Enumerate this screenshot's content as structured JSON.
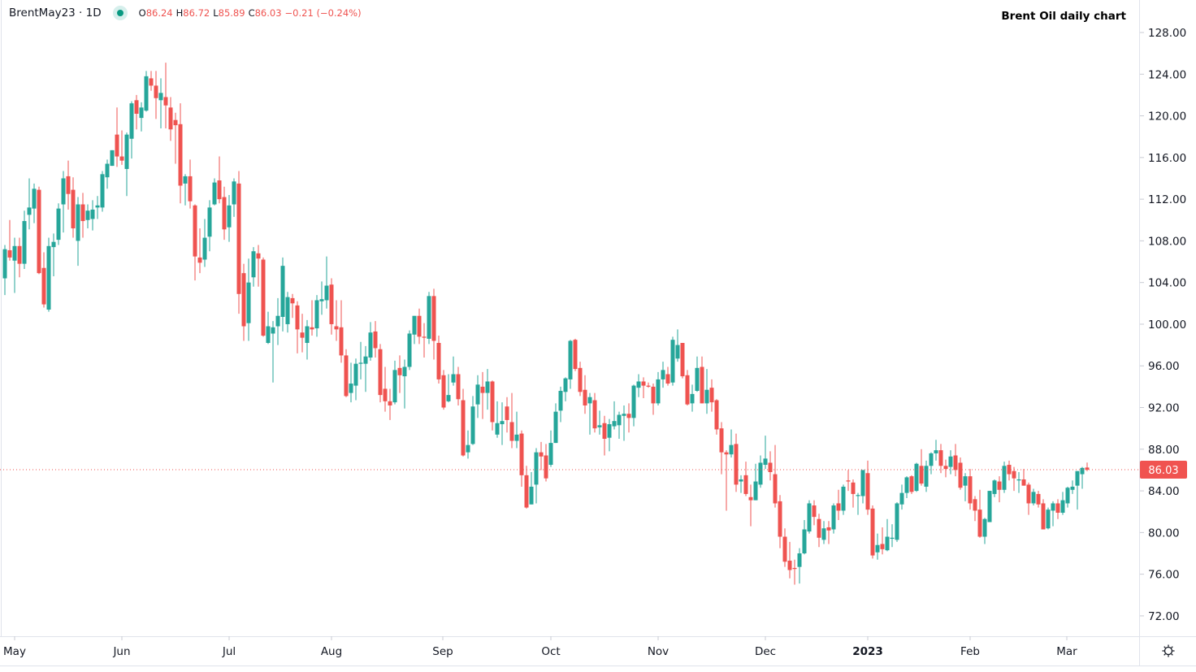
{
  "header": {
    "symbol": "BrentMay23 · 1D",
    "open_label": "O",
    "open": "86.24",
    "high_label": "H",
    "high": "86.72",
    "low_label": "L",
    "low": "85.89",
    "close_label": "C",
    "close": "86.03",
    "change": "−0.21 (−0.24%)"
  },
  "settings_icon": "gear-icon",
  "chart_data": {
    "type": "candlestick",
    "title": "Brent Oil daily chart",
    "ylim": [
      69.8,
      130.6
    ],
    "y_ticks": [
      "128.00",
      "124.00",
      "120.00",
      "116.00",
      "112.00",
      "108.00",
      "104.00",
      "100.00",
      "96.00",
      "92.00",
      "88.00",
      "84.00",
      "80.00",
      "76.00",
      "72.00"
    ],
    "x_ticks": [
      {
        "label": "May",
        "bold": false
      },
      {
        "label": "Jun",
        "bold": false
      },
      {
        "label": "Jul",
        "bold": false
      },
      {
        "label": "Aug",
        "bold": false
      },
      {
        "label": "Sep",
        "bold": false
      },
      {
        "label": "Oct",
        "bold": false
      },
      {
        "label": "Nov",
        "bold": false
      },
      {
        "label": "Dec",
        "bold": false
      },
      {
        "label": "2023",
        "bold": true
      },
      {
        "label": "Feb",
        "bold": false
      },
      {
        "label": "Mar",
        "bold": false
      }
    ],
    "last_price": "86.03",
    "grid": false,
    "colors": {
      "up": "#26a69a",
      "down": "#ef5350",
      "last_price": "#f05350"
    },
    "candle_fields": [
      "open",
      "high",
      "low",
      "close"
    ],
    "candles": [
      [
        104.4,
        107.6,
        102.8,
        107.2
      ],
      [
        107.1,
        110.0,
        106.1,
        106.4
      ],
      [
        106.1,
        108.3,
        103.0,
        107.5
      ],
      [
        107.5,
        108.3,
        104.5,
        105.8
      ],
      [
        105.8,
        110.9,
        105.3,
        109.9
      ],
      [
        110.5,
        114.0,
        109.1,
        111.2
      ],
      [
        111.1,
        113.5,
        109.7,
        113.0
      ],
      [
        112.9,
        113.2,
        104.8,
        104.9
      ],
      [
        105.4,
        106.9,
        101.6,
        101.9
      ],
      [
        101.4,
        108.3,
        101.2,
        107.5
      ],
      [
        107.4,
        108.7,
        104.6,
        107.9
      ],
      [
        108.1,
        111.6,
        107.6,
        111.1
      ],
      [
        111.5,
        114.7,
        108.8,
        114.0
      ],
      [
        114.2,
        115.7,
        111.0,
        112.5
      ],
      [
        112.9,
        114.1,
        108.3,
        109.2
      ],
      [
        108.0,
        112.2,
        105.6,
        111.5
      ],
      [
        111.5,
        112.6,
        108.3,
        109.9
      ],
      [
        110.0,
        111.5,
        109.2,
        110.9
      ],
      [
        110.1,
        111.9,
        109.0,
        111.0
      ],
      [
        111.2,
        112.3,
        110.1,
        111.4
      ],
      [
        111.2,
        114.7,
        110.8,
        114.4
      ],
      [
        114.1,
        115.8,
        113.0,
        115.4
      ],
      [
        115.2,
        116.7,
        115.2,
        116.7
      ],
      [
        118.2,
        120.8,
        115.1,
        116.1
      ],
      [
        116.1,
        118.6,
        115.3,
        115.7
      ],
      [
        114.9,
        118.4,
        112.3,
        118.2
      ],
      [
        117.8,
        121.4,
        115.9,
        121.2
      ],
      [
        121.5,
        122.0,
        118.7,
        120.2
      ],
      [
        119.8,
        121.3,
        118.5,
        120.8
      ],
      [
        120.5,
        124.3,
        120.4,
        123.8
      ],
      [
        123.6,
        124.3,
        122.4,
        122.9
      ],
      [
        122.9,
        124.3,
        119.7,
        121.7
      ],
      [
        121.5,
        123.6,
        118.8,
        122.2
      ],
      [
        121.8,
        125.1,
        118.8,
        121.0
      ],
      [
        120.8,
        121.8,
        117.6,
        118.7
      ],
      [
        119.6,
        120.3,
        115.4,
        119.1
      ],
      [
        119.2,
        121.2,
        111.6,
        113.3
      ],
      [
        113.5,
        114.4,
        111.4,
        114.2
      ],
      [
        114.2,
        115.8,
        111.1,
        111.8
      ],
      [
        111.4,
        111.5,
        104.2,
        106.5
      ],
      [
        106.4,
        109.2,
        104.9,
        105.9
      ],
      [
        106.2,
        110.1,
        105.5,
        108.3
      ],
      [
        108.4,
        111.9,
        107.0,
        111.2
      ],
      [
        111.5,
        114.0,
        111.4,
        113.6
      ],
      [
        113.8,
        116.1,
        111.6,
        112.0
      ],
      [
        112.2,
        113.2,
        108.1,
        109.1
      ],
      [
        109.3,
        112.4,
        107.9,
        111.4
      ],
      [
        111.5,
        114.0,
        110.3,
        113.7
      ],
      [
        113.5,
        114.7,
        101.0,
        102.9
      ],
      [
        104.9,
        105.8,
        98.4,
        99.8
      ],
      [
        100.1,
        106.3,
        98.4,
        104.0
      ],
      [
        104.5,
        107.4,
        103.6,
        107.0
      ],
      [
        106.8,
        107.6,
        103.6,
        106.3
      ],
      [
        106.2,
        106.4,
        98.8,
        98.9
      ],
      [
        98.2,
        101.2,
        98.1,
        99.8
      ],
      [
        99.1,
        100.3,
        94.4,
        99.7
      ],
      [
        99.8,
        102.5,
        98.0,
        100.8
      ],
      [
        100.7,
        106.4,
        99.3,
        105.6
      ],
      [
        100.0,
        103.1,
        99.2,
        102.6
      ],
      [
        102.5,
        102.9,
        100.6,
        102.0
      ],
      [
        101.8,
        102.2,
        97.2,
        99.5
      ],
      [
        99.2,
        101.0,
        97.3,
        98.7
      ],
      [
        98.2,
        100.4,
        96.6,
        99.8
      ],
      [
        99.7,
        102.3,
        98.9,
        99.5
      ],
      [
        99.6,
        102.8,
        98.8,
        102.3
      ],
      [
        102.2,
        104.1,
        100.9,
        102.4
      ],
      [
        102.3,
        106.5,
        101.5,
        103.7
      ],
      [
        103.8,
        104.4,
        99.0,
        100.0
      ],
      [
        99.8,
        102.3,
        98.4,
        99.5
      ],
      [
        99.7,
        102.3,
        96.3,
        97.0
      ],
      [
        97.0,
        97.6,
        93.0,
        93.1
      ],
      [
        93.4,
        96.3,
        92.5,
        94.3
      ],
      [
        94.1,
        96.7,
        92.7,
        96.2
      ],
      [
        96.2,
        98.3,
        94.7,
        96.3
      ],
      [
        96.2,
        97.9,
        93.5,
        96.9
      ],
      [
        96.8,
        100.2,
        96.5,
        99.2
      ],
      [
        99.3,
        100.3,
        96.8,
        97.7
      ],
      [
        97.6,
        98.1,
        92.5,
        93.2
      ],
      [
        93.8,
        95.9,
        91.6,
        92.6
      ],
      [
        92.6,
        93.8,
        90.8,
        92.2
      ],
      [
        92.5,
        96.5,
        92.3,
        95.6
      ],
      [
        95.8,
        97.0,
        93.4,
        95.1
      ],
      [
        95.0,
        96.6,
        91.9,
        95.9
      ],
      [
        95.9,
        99.4,
        95.6,
        99.1
      ],
      [
        99.0,
        100.8,
        98.1,
        100.8
      ],
      [
        100.8,
        101.5,
        98.1,
        98.8
      ],
      [
        98.8,
        100.1,
        96.8,
        98.7
      ],
      [
        98.6,
        103.1,
        98.1,
        102.7
      ],
      [
        102.7,
        103.4,
        96.6,
        98.4
      ],
      [
        98.2,
        98.9,
        94.3,
        94.7
      ],
      [
        95.1,
        95.6,
        91.8,
        92.0
      ],
      [
        92.6,
        95.2,
        92.5,
        93.2
      ],
      [
        94.4,
        96.9,
        94.1,
        95.2
      ],
      [
        95.2,
        95.9,
        92.2,
        92.8
      ],
      [
        92.7,
        93.8,
        87.3,
        87.4
      ],
      [
        87.7,
        89.8,
        87.1,
        88.4
      ],
      [
        88.5,
        93.1,
        88.4,
        92.1
      ],
      [
        92.3,
        95.1,
        91.0,
        94.2
      ],
      [
        94.0,
        95.4,
        90.9,
        93.4
      ],
      [
        93.4,
        95.7,
        91.8,
        94.5
      ],
      [
        94.5,
        94.6,
        89.8,
        90.6
      ],
      [
        89.4,
        92.6,
        89.1,
        90.5
      ],
      [
        90.4,
        92.5,
        88.4,
        90.7
      ],
      [
        92.1,
        93.0,
        89.6,
        90.8
      ],
      [
        90.6,
        93.4,
        88.1,
        88.8
      ],
      [
        88.8,
        91.6,
        88.1,
        89.4
      ],
      [
        89.5,
        89.8,
        84.4,
        85.5
      ],
      [
        85.5,
        86.4,
        82.3,
        82.4
      ],
      [
        82.7,
        85.8,
        82.7,
        84.4
      ],
      [
        84.6,
        88.1,
        82.8,
        87.7
      ],
      [
        87.7,
        88.7,
        86.0,
        87.3
      ],
      [
        87.4,
        88.5,
        84.9,
        85.2
      ],
      [
        86.5,
        89.8,
        86.3,
        88.6
      ],
      [
        88.6,
        92.4,
        88.6,
        91.6
      ],
      [
        91.7,
        94.0,
        90.6,
        93.6
      ],
      [
        93.5,
        94.9,
        92.6,
        94.8
      ],
      [
        94.7,
        98.5,
        93.8,
        98.4
      ],
      [
        98.5,
        98.6,
        95.5,
        95.7
      ],
      [
        95.8,
        96.4,
        93.1,
        93.5
      ],
      [
        93.7,
        95.1,
        91.4,
        92.2
      ],
      [
        92.4,
        93.4,
        89.4,
        93.0
      ],
      [
        92.7,
        93.4,
        89.6,
        90.0
      ],
      [
        90.1,
        91.7,
        89.4,
        90.3
      ],
      [
        90.5,
        91.2,
        87.4,
        89.0
      ],
      [
        89.1,
        90.9,
        87.8,
        90.4
      ],
      [
        90.2,
        92.6,
        89.9,
        90.7
      ],
      [
        90.3,
        91.6,
        89.0,
        91.3
      ],
      [
        91.2,
        92.2,
        88.8,
        91.4
      ],
      [
        91.4,
        92.4,
        89.6,
        91.0
      ],
      [
        91.0,
        94.2,
        90.2,
        94.1
      ],
      [
        93.9,
        95.2,
        93.0,
        94.5
      ],
      [
        94.5,
        94.9,
        92.9,
        94.1
      ],
      [
        94.1,
        94.4,
        93.9,
        94.0
      ],
      [
        94.0,
        94.3,
        91.3,
        92.4
      ],
      [
        92.4,
        95.4,
        92.2,
        94.7
      ],
      [
        94.7,
        96.4,
        93.9,
        95.6
      ],
      [
        95.2,
        95.9,
        94.1,
        94.3
      ],
      [
        94.4,
        98.8,
        94.1,
        98.5
      ],
      [
        96.7,
        99.5,
        96.4,
        98.0
      ],
      [
        98.2,
        98.2,
        94.8,
        95.0
      ],
      [
        95.1,
        95.6,
        92.2,
        92.3
      ],
      [
        92.4,
        94.2,
        91.6,
        93.3
      ],
      [
        93.6,
        96.9,
        93.5,
        95.8
      ],
      [
        95.9,
        96.9,
        92.4,
        92.4
      ],
      [
        92.4,
        95.7,
        91.4,
        93.7
      ],
      [
        93.9,
        94.7,
        91.6,
        92.5
      ],
      [
        92.7,
        92.8,
        89.4,
        89.9
      ],
      [
        90.0,
        90.6,
        85.6,
        87.7
      ],
      [
        87.7,
        87.9,
        82.1,
        87.5
      ],
      [
        87.5,
        89.9,
        87.2,
        88.4
      ],
      [
        88.5,
        89.5,
        83.9,
        84.6
      ],
      [
        84.9,
        85.5,
        83.8,
        85.1
      ],
      [
        85.5,
        86.8,
        83.5,
        83.7
      ],
      [
        83.4,
        84.6,
        80.6,
        83.1
      ],
      [
        83.1,
        86.6,
        83.1,
        84.9
      ],
      [
        84.6,
        87.4,
        84.3,
        86.7
      ],
      [
        86.5,
        89.3,
        86.1,
        87.1
      ],
      [
        86.7,
        87.8,
        85.0,
        85.8
      ],
      [
        85.6,
        88.4,
        82.4,
        82.8
      ],
      [
        83.0,
        83.6,
        78.5,
        79.6
      ],
      [
        79.6,
        80.4,
        76.7,
        77.2
      ],
      [
        77.3,
        79.1,
        75.6,
        76.4
      ],
      [
        76.6,
        77.4,
        75.0,
        76.5
      ],
      [
        76.7,
        78.5,
        75.1,
        78.0
      ],
      [
        78.0,
        81.2,
        77.9,
        80.3
      ],
      [
        80.1,
        83.1,
        79.9,
        82.8
      ],
      [
        82.6,
        83.1,
        80.7,
        81.5
      ],
      [
        81.3,
        81.8,
        78.6,
        79.5
      ],
      [
        79.3,
        81.1,
        78.9,
        80.4
      ],
      [
        80.5,
        81.1,
        78.9,
        80.2
      ],
      [
        80.3,
        82.8,
        79.9,
        82.6
      ],
      [
        82.8,
        84.1,
        81.2,
        82.1
      ],
      [
        82.1,
        84.6,
        81.7,
        84.4
      ],
      [
        85.0,
        86.0,
        84.0,
        84.9
      ],
      [
        84.8,
        85.1,
        82.4,
        83.7
      ],
      [
        83.5,
        83.8,
        81.7,
        83.6
      ],
      [
        83.5,
        86.0,
        82.8,
        86.0
      ],
      [
        85.7,
        86.9,
        81.7,
        82.2
      ],
      [
        82.3,
        82.6,
        77.5,
        77.8
      ],
      [
        78.1,
        79.9,
        77.4,
        78.8
      ],
      [
        78.9,
        80.5,
        77.9,
        78.4
      ],
      [
        78.3,
        81.3,
        78.2,
        79.6
      ],
      [
        79.4,
        80.8,
        78.6,
        79.5
      ],
      [
        79.3,
        82.9,
        79.1,
        82.8
      ],
      [
        82.7,
        84.6,
        82.2,
        83.8
      ],
      [
        83.8,
        85.4,
        83.3,
        85.3
      ],
      [
        85.4,
        85.5,
        83.7,
        83.9
      ],
      [
        84.0,
        86.7,
        83.9,
        86.6
      ],
      [
        86.4,
        88.0,
        84.5,
        84.7
      ],
      [
        84.4,
        86.9,
        83.9,
        86.4
      ],
      [
        86.4,
        87.7,
        85.6,
        87.6
      ],
      [
        87.6,
        88.9,
        86.9,
        87.9
      ],
      [
        87.9,
        88.5,
        85.7,
        86.4
      ],
      [
        86.4,
        87.0,
        85.3,
        86.1
      ],
      [
        86.3,
        87.9,
        85.6,
        87.3
      ],
      [
        87.4,
        88.5,
        85.4,
        86.0
      ],
      [
        86.7,
        87.2,
        84.1,
        84.3
      ],
      [
        84.5,
        85.7,
        83.0,
        85.4
      ],
      [
        85.4,
        86.1,
        82.2,
        82.8
      ],
      [
        83.2,
        83.5,
        81.1,
        82.1
      ],
      [
        82.2,
        84.1,
        79.5,
        79.6
      ],
      [
        79.6,
        81.4,
        78.9,
        81.3
      ],
      [
        81.0,
        84.0,
        81.0,
        84.0
      ],
      [
        83.7,
        85.1,
        83.4,
        85.0
      ],
      [
        84.9,
        85.4,
        82.9,
        84.1
      ],
      [
        84.1,
        86.8,
        83.8,
        86.4
      ],
      [
        86.5,
        86.9,
        85.0,
        85.6
      ],
      [
        85.9,
        86.3,
        84.0,
        85.2
      ],
      [
        85.0,
        85.8,
        83.8,
        85.1
      ],
      [
        85.1,
        86.1,
        84.5,
        84.5
      ],
      [
        84.6,
        84.8,
        81.7,
        82.8
      ],
      [
        82.8,
        84.2,
        82.6,
        83.9
      ],
      [
        83.7,
        84.0,
        82.4,
        82.7
      ],
      [
        82.8,
        83.2,
        80.3,
        80.3
      ],
      [
        80.4,
        82.4,
        80.3,
        82.2
      ],
      [
        82.1,
        83.0,
        80.6,
        82.8
      ],
      [
        82.8,
        83.2,
        81.3,
        81.9
      ],
      [
        81.9,
        83.9,
        81.7,
        83.1
      ],
      [
        82.8,
        84.4,
        82.4,
        84.3
      ],
      [
        84.1,
        85.0,
        83.7,
        84.4
      ],
      [
        84.5,
        85.9,
        82.2,
        85.9
      ],
      [
        85.6,
        86.3,
        84.2,
        86.2
      ],
      [
        86.24,
        86.72,
        85.89,
        86.03
      ]
    ]
  }
}
